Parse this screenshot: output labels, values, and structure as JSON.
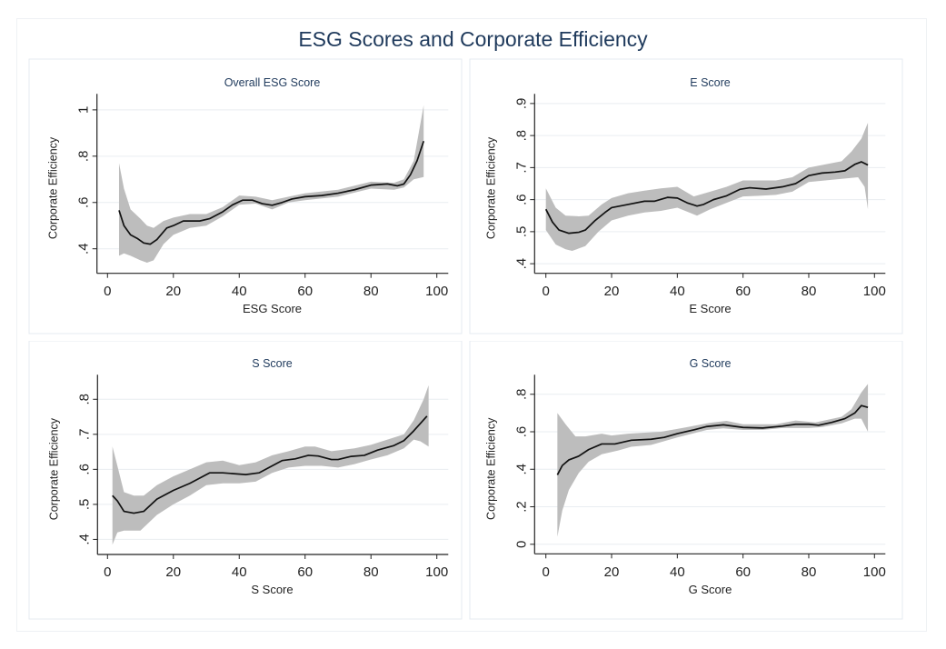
{
  "title": "ESG Scores and Corporate Efficiency",
  "colors": {
    "title": "#1f3a5c",
    "band": "#bdbdbd",
    "line": "#111111",
    "grid": "#e9edf1"
  },
  "chart_data": [
    {
      "type": "line",
      "title": "Overall ESG Score",
      "xlabel": "ESG Score",
      "ylabel": "Corporate Efficiency",
      "xlim": [
        0,
        100
      ],
      "ylim": [
        0.294,
        1.069
      ],
      "xticks": [
        0,
        20,
        40,
        60,
        80,
        100
      ],
      "xtick_labels": [
        "0",
        "20",
        "40",
        "60",
        "80",
        "100"
      ],
      "yticks": [
        0.4,
        0.6,
        0.8,
        1.0
      ],
      "ytick_labels": [
        ".4",
        ".6",
        ".8",
        "1"
      ],
      "grid": true,
      "series": [
        {
          "name": "fit",
          "x": [
            3.5,
            5,
            7,
            9,
            11,
            13,
            15,
            18,
            20,
            23,
            25,
            28,
            31,
            35,
            38,
            41,
            44,
            47,
            50,
            53,
            56,
            60,
            65,
            70,
            75,
            80,
            85,
            88,
            90,
            92,
            94,
            96
          ],
          "y": [
            0.566,
            0.5,
            0.46,
            0.445,
            0.425,
            0.42,
            0.44,
            0.49,
            0.5,
            0.52,
            0.52,
            0.52,
            0.53,
            0.56,
            0.59,
            0.61,
            0.61,
            0.595,
            0.588,
            0.6,
            0.615,
            0.625,
            0.63,
            0.64,
            0.655,
            0.675,
            0.68,
            0.672,
            0.68,
            0.72,
            0.78,
            0.865
          ]
        }
      ],
      "ci_upper": {
        "x": [
          3.5,
          5,
          7,
          10,
          12,
          14,
          17,
          20,
          25,
          30,
          35,
          40,
          45,
          50,
          55,
          60,
          70,
          80,
          87,
          90,
          93,
          96
        ],
        "y": [
          0.77,
          0.66,
          0.57,
          0.53,
          0.5,
          0.49,
          0.52,
          0.535,
          0.55,
          0.55,
          0.58,
          0.63,
          0.625,
          0.61,
          0.625,
          0.64,
          0.655,
          0.69,
          0.685,
          0.7,
          0.78,
          1.02
        ]
      },
      "ci_lower": {
        "x": [
          3.5,
          5,
          7,
          10,
          12,
          14,
          17,
          20,
          25,
          30,
          35,
          40,
          45,
          50,
          55,
          60,
          70,
          80,
          87,
          90,
          93,
          96
        ],
        "y": [
          0.37,
          0.38,
          0.37,
          0.35,
          0.34,
          0.35,
          0.42,
          0.46,
          0.49,
          0.5,
          0.54,
          0.59,
          0.595,
          0.57,
          0.6,
          0.61,
          0.625,
          0.66,
          0.655,
          0.665,
          0.7,
          0.71
        ]
      }
    },
    {
      "type": "line",
      "title": "E Score",
      "xlabel": "E Score",
      "ylabel": "Corporate Efficiency",
      "xlim": [
        0,
        100
      ],
      "ylim": [
        0.37,
        0.93
      ],
      "xticks": [
        0,
        20,
        40,
        60,
        80,
        100
      ],
      "xtick_labels": [
        "0",
        "20",
        "40",
        "60",
        "80",
        "100"
      ],
      "yticks": [
        0.4,
        0.5,
        0.6,
        0.7,
        0.8,
        0.9
      ],
      "ytick_labels": [
        ".4",
        ".5",
        ".6",
        ".7",
        ".8",
        ".9"
      ],
      "grid": true,
      "series": [
        {
          "name": "fit",
          "x": [
            0,
            2,
            4,
            7,
            10,
            12,
            15,
            18,
            20,
            25,
            30,
            33,
            37,
            40,
            43,
            46,
            48,
            51,
            55,
            59,
            62,
            67,
            72,
            76,
            80,
            84,
            88,
            91,
            94,
            96,
            98
          ],
          "y": [
            0.57,
            0.53,
            0.505,
            0.495,
            0.498,
            0.505,
            0.535,
            0.56,
            0.575,
            0.585,
            0.595,
            0.595,
            0.607,
            0.605,
            0.59,
            0.58,
            0.585,
            0.6,
            0.612,
            0.632,
            0.637,
            0.633,
            0.64,
            0.65,
            0.675,
            0.683,
            0.686,
            0.69,
            0.71,
            0.718,
            0.708
          ]
        }
      ],
      "ci_upper": {
        "x": [
          0,
          3,
          6,
          10,
          13,
          17,
          20,
          25,
          30,
          35,
          40,
          45,
          50,
          55,
          60,
          65,
          70,
          75,
          80,
          85,
          90,
          93,
          96,
          98
        ],
        "y": [
          0.635,
          0.575,
          0.55,
          0.548,
          0.55,
          0.585,
          0.605,
          0.62,
          0.628,
          0.635,
          0.64,
          0.61,
          0.625,
          0.64,
          0.66,
          0.66,
          0.66,
          0.67,
          0.7,
          0.71,
          0.72,
          0.75,
          0.79,
          0.84
        ]
      },
      "ci_lower": {
        "x": [
          0,
          3,
          6,
          8,
          12,
          16,
          20,
          25,
          30,
          35,
          40,
          46,
          50,
          55,
          60,
          65,
          70,
          75,
          80,
          85,
          90,
          95,
          97,
          98
        ],
        "y": [
          0.505,
          0.46,
          0.445,
          0.44,
          0.455,
          0.5,
          0.535,
          0.55,
          0.56,
          0.565,
          0.575,
          0.55,
          0.57,
          0.59,
          0.61,
          0.612,
          0.615,
          0.625,
          0.655,
          0.66,
          0.665,
          0.67,
          0.64,
          0.57
        ]
      }
    },
    {
      "type": "line",
      "title": "S Score",
      "xlabel": "S Score",
      "ylabel": "Corporate Efficiency",
      "xlim": [
        0,
        100
      ],
      "ylim": [
        0.357,
        0.87
      ],
      "xticks": [
        0,
        20,
        40,
        60,
        80,
        100
      ],
      "xtick_labels": [
        "0",
        "20",
        "40",
        "60",
        "80",
        "100"
      ],
      "yticks": [
        0.4,
        0.5,
        0.6,
        0.7,
        0.8
      ],
      "ytick_labels": [
        ".4",
        ".5",
        ".6",
        ".7",
        ".8"
      ],
      "grid": true,
      "series": [
        {
          "name": "fit",
          "x": [
            1.5,
            3,
            5,
            8,
            11,
            15,
            20,
            25,
            28,
            31,
            35,
            42,
            46,
            50,
            53,
            57,
            61,
            64,
            68,
            70,
            74,
            78,
            82,
            87,
            90,
            93,
            97
          ],
          "y": [
            0.525,
            0.51,
            0.48,
            0.475,
            0.48,
            0.515,
            0.54,
            0.56,
            0.575,
            0.59,
            0.59,
            0.585,
            0.59,
            0.61,
            0.625,
            0.63,
            0.64,
            0.638,
            0.628,
            0.628,
            0.637,
            0.64,
            0.655,
            0.668,
            0.682,
            0.71,
            0.752
          ]
        }
      ],
      "ci_upper": {
        "x": [
          1.5,
          3,
          5,
          8,
          11,
          15,
          20,
          25,
          30,
          35,
          40,
          45,
          50,
          55,
          60,
          63,
          68,
          75,
          80,
          85,
          90,
          93,
          96,
          97.5
        ],
        "y": [
          0.665,
          0.61,
          0.535,
          0.525,
          0.525,
          0.555,
          0.58,
          0.6,
          0.62,
          0.625,
          0.612,
          0.62,
          0.64,
          0.652,
          0.665,
          0.665,
          0.652,
          0.66,
          0.67,
          0.685,
          0.7,
          0.74,
          0.8,
          0.84
        ]
      },
      "ci_lower": {
        "x": [
          1.5,
          3,
          5,
          10,
          15,
          20,
          25,
          30,
          35,
          40,
          45,
          50,
          55,
          60,
          65,
          70,
          75,
          80,
          85,
          90,
          93,
          95,
          97.5
        ],
        "y": [
          0.385,
          0.42,
          0.425,
          0.425,
          0.47,
          0.5,
          0.525,
          0.555,
          0.56,
          0.56,
          0.565,
          0.59,
          0.605,
          0.61,
          0.61,
          0.605,
          0.615,
          0.628,
          0.64,
          0.66,
          0.685,
          0.68,
          0.665
        ]
      }
    },
    {
      "type": "line",
      "title": "G Score",
      "xlabel": "G Score",
      "ylabel": "Corporate Efficiency",
      "xlim": [
        0,
        100
      ],
      "ylim": [
        -0.051,
        0.904
      ],
      "xticks": [
        0,
        20,
        40,
        60,
        80,
        100
      ],
      "xtick_labels": [
        "0",
        "20",
        "40",
        "60",
        "80",
        "100"
      ],
      "yticks": [
        0,
        0.2,
        0.4,
        0.6,
        0.8
      ],
      "ytick_labels": [
        "0",
        ".2",
        ".4",
        ".6",
        ".8"
      ],
      "grid": true,
      "series": [
        {
          "name": "fit",
          "x": [
            3.5,
            5,
            7,
            10,
            13,
            17,
            21,
            26,
            32,
            36,
            40,
            45,
            49,
            54,
            60,
            66,
            72,
            76,
            80,
            83,
            87,
            91,
            94,
            96,
            98
          ],
          "y": [
            0.37,
            0.42,
            0.45,
            0.47,
            0.505,
            0.535,
            0.535,
            0.555,
            0.56,
            0.57,
            0.59,
            0.61,
            0.628,
            0.637,
            0.623,
            0.62,
            0.63,
            0.64,
            0.64,
            0.635,
            0.65,
            0.67,
            0.7,
            0.74,
            0.73
          ]
        }
      ],
      "ci_upper": {
        "x": [
          3.5,
          6,
          9,
          12,
          17,
          20,
          25,
          30,
          35,
          40,
          50,
          55,
          60,
          70,
          76,
          82,
          86,
          90,
          93,
          96,
          98
        ],
        "y": [
          0.7,
          0.64,
          0.575,
          0.575,
          0.59,
          0.58,
          0.59,
          0.595,
          0.6,
          0.615,
          0.648,
          0.658,
          0.64,
          0.64,
          0.66,
          0.65,
          0.665,
          0.68,
          0.72,
          0.81,
          0.855
        ]
      },
      "ci_lower": {
        "x": [
          3.5,
          5,
          7,
          10,
          13,
          17,
          22,
          26,
          32,
          40,
          49,
          54,
          60,
          66,
          72,
          80,
          84,
          90,
          94,
          96,
          98
        ],
        "y": [
          0.04,
          0.18,
          0.29,
          0.38,
          0.44,
          0.48,
          0.5,
          0.52,
          0.53,
          0.57,
          0.61,
          0.618,
          0.61,
          0.61,
          0.62,
          0.62,
          0.625,
          0.645,
          0.67,
          0.67,
          0.6
        ]
      }
    }
  ]
}
